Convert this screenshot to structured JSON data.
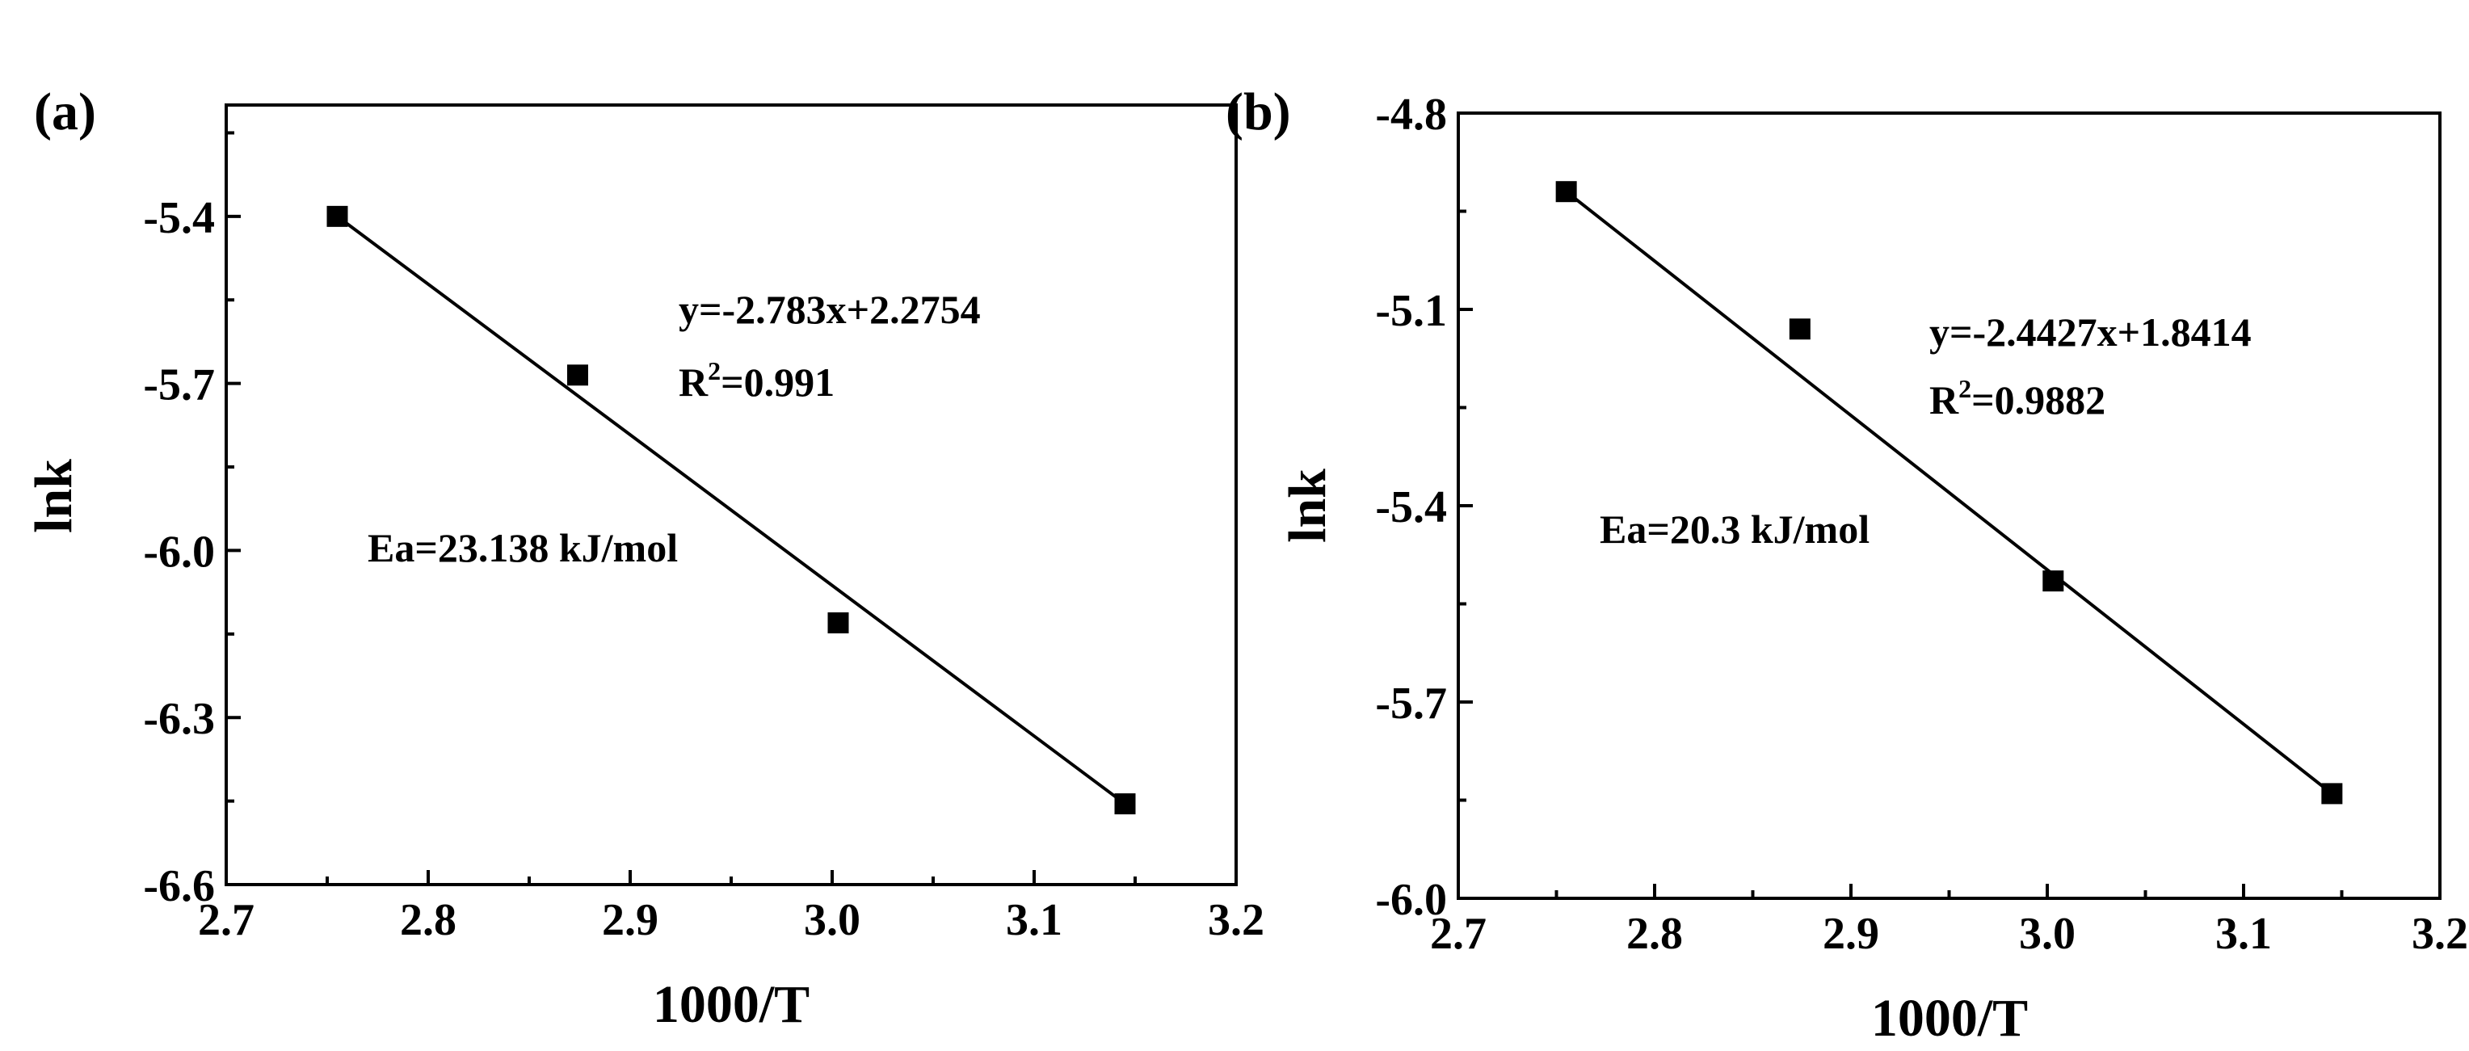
{
  "chart_data": [
    {
      "panel_label": "(a)",
      "type": "scatter",
      "xlabel": "1000/T",
      "ylabel": "lnk",
      "xlim": [
        2.7,
        3.2
      ],
      "ylim": [
        -6.6,
        -5.2
      ],
      "x_ticks": [
        2.7,
        2.8,
        2.9,
        3.0,
        3.1,
        3.2
      ],
      "x_tick_labels": [
        "2.7",
        "2.8",
        "2.9",
        "3.0",
        "3.1",
        "3.2"
      ],
      "y_ticks": [
        -5.4,
        -5.7,
        -6.0,
        -6.3,
        -6.6
      ],
      "y_tick_labels": [
        "-5.4",
        "-5.7",
        "-6.0",
        "-6.3",
        "-6.6"
      ],
      "points": [
        {
          "x": 2.755,
          "y": -5.4
        },
        {
          "x": 2.874,
          "y": -5.685
        },
        {
          "x": 3.003,
          "y": -6.13
        },
        {
          "x": 3.145,
          "y": -6.455
        }
      ],
      "fit": {
        "slope": -2.783,
        "intercept": 2.2754,
        "x_range": [
          2.755,
          3.145
        ]
      },
      "annotations": {
        "equation": "y=-2.783x+2.2754",
        "r2_label": "R",
        "r2_sup": "2",
        "r2_value": "=0.991",
        "ea": "Ea=23.138 kJ/mol"
      },
      "grid": false,
      "legend": "none"
    },
    {
      "panel_label": "(b)",
      "type": "scatter",
      "xlabel": "1000/T",
      "ylabel": "lnk",
      "xlim": [
        2.7,
        3.2
      ],
      "ylim": [
        -6.0,
        -4.8
      ],
      "x_ticks": [
        2.7,
        2.8,
        2.9,
        3.0,
        3.1,
        3.2
      ],
      "x_tick_labels": [
        "2.7",
        "2.8",
        "2.9",
        "3.0",
        "3.1",
        "3.2"
      ],
      "y_ticks": [
        -4.8,
        -5.1,
        -5.4,
        -5.7,
        -6.0
      ],
      "y_tick_labels": [
        "-4.8",
        "-5.1",
        "-5.4",
        "-5.7",
        "-6.0"
      ],
      "points": [
        {
          "x": 2.755,
          "y": -4.92
        },
        {
          "x": 2.874,
          "y": -5.13
        },
        {
          "x": 3.003,
          "y": -5.515
        },
        {
          "x": 3.145,
          "y": -5.84
        }
      ],
      "fit": {
        "slope": -2.4427,
        "intercept": 1.8414,
        "x_range": [
          2.755,
          3.145
        ]
      },
      "annotations": {
        "equation": "y=-2.4427x+1.8414",
        "r2_label": "R",
        "r2_sup": "2",
        "r2_value": "=0.9882",
        "ea": "Ea=20.3 kJ/mol"
      },
      "grid": false,
      "legend": "none"
    }
  ]
}
